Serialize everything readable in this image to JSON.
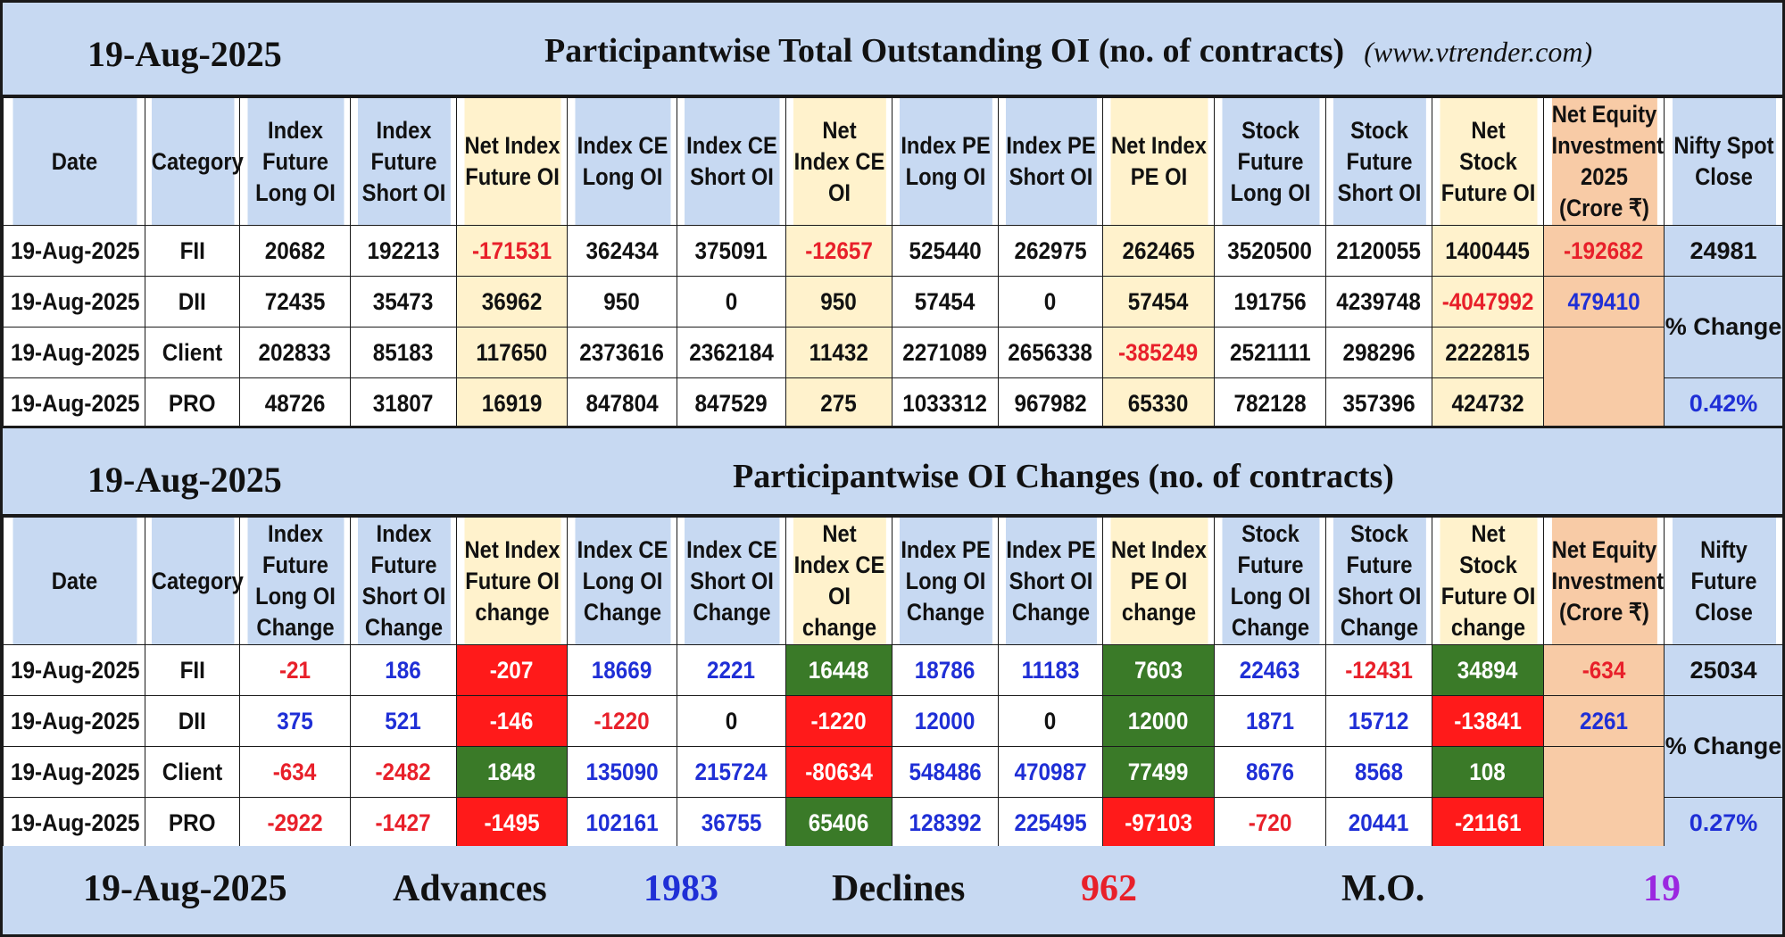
{
  "header1": {
    "date": "19-Aug-2025",
    "title": "Participantwise Total Outstanding OI (no. of contracts)",
    "site": "(www.vtrender.com)"
  },
  "table1": {
    "headers": [
      "Date",
      "Category",
      "Index Future Long OI",
      "Index Future Short OI",
      "Net Index Future OI",
      "Index CE Long OI",
      "Index CE Short OI",
      "Net Index CE OI",
      "Index PE Long OI",
      "Index PE Short OI",
      "Net Index PE OI",
      "Stock Future Long OI",
      "Stock Future Short OI",
      "Net Stock Future OI",
      "Net Equity Investment 2025 (Crore ₹)",
      "Nifty Spot Close"
    ],
    "rows": [
      [
        "19-Aug-2025",
        "FII",
        "20682",
        "192213",
        "-171531",
        "362434",
        "375091",
        "-12657",
        "525440",
        "262975",
        "262465",
        "3520500",
        "2120055",
        "1400445",
        "-192682"
      ],
      [
        "19-Aug-2025",
        "DII",
        "72435",
        "35473",
        "36962",
        "950",
        "0",
        "950",
        "57454",
        "0",
        "57454",
        "191756",
        "4239748",
        "-4047992",
        "479410"
      ],
      [
        "19-Aug-2025",
        "Client",
        "202833",
        "85183",
        "117650",
        "2373616",
        "2362184",
        "11432",
        "2271089",
        "2656338",
        "-385249",
        "2521111",
        "298296",
        "2222815",
        ""
      ],
      [
        "19-Aug-2025",
        "PRO",
        "48726",
        "31807",
        "16919",
        "847804",
        "847529",
        "275",
        "1033312",
        "967982",
        "65330",
        "782128",
        "357396",
        "424732",
        ""
      ]
    ],
    "nifty_value": "24981",
    "pct_label": "% Change",
    "pct_value": "0.42%"
  },
  "header2": {
    "date": "19-Aug-2025",
    "title": "Participantwise OI Changes (no. of contracts)"
  },
  "table2": {
    "headers": [
      "Date",
      "Category",
      "Index Future Long OI Change",
      "Index Future Short OI Change",
      "Net Index Future OI change",
      "Index CE Long OI Change",
      "Index CE Short OI Change",
      "Net Index CE OI change",
      "Index PE Long OI Change",
      "Index PE Short OI Change",
      "Net Index PE OI change",
      "Stock Future Long OI Change",
      "Stock Future Short OI Change",
      "Net Stock Future OI change",
      "Net Equity Investment (Crore ₹)",
      "Nifty Future Close"
    ],
    "rows": [
      [
        "19-Aug-2025",
        "FII",
        "-21",
        "186",
        "-207",
        "18669",
        "2221",
        "16448",
        "18786",
        "11183",
        "7603",
        "22463",
        "-12431",
        "34894",
        "-634"
      ],
      [
        "19-Aug-2025",
        "DII",
        "375",
        "521",
        "-146",
        "-1220",
        "0",
        "-1220",
        "12000",
        "0",
        "12000",
        "1871",
        "15712",
        "-13841",
        "2261"
      ],
      [
        "19-Aug-2025",
        "Client",
        "-634",
        "-2482",
        "1848",
        "135090",
        "215724",
        "-80634",
        "548486",
        "470987",
        "77499",
        "8676",
        "8568",
        "108",
        ""
      ],
      [
        "19-Aug-2025",
        "PRO",
        "-2922",
        "-1427",
        "-1495",
        "102161",
        "36755",
        "65406",
        "128392",
        "225495",
        "-97103",
        "-720",
        "20441",
        "-21161",
        ""
      ]
    ],
    "nifty_value": "25034",
    "pct_label": "% Change",
    "pct_value": "0.27%"
  },
  "footer": {
    "date": "19-Aug-2025",
    "advances_label": "Advances",
    "advances": "1983",
    "declines_label": "Declines",
    "declines": "962",
    "mo_label": "M.O.",
    "mo": "19"
  },
  "colors": {
    "header_blue": "#c7d9f2",
    "cream": "#fff2cc",
    "salmon": "#f8cba6",
    "positive_blue": "#1f2fd6",
    "negative_red": "#e8202a",
    "cell_red": "#ff1a1a",
    "cell_green": "#3a7a28",
    "mo_purple": "#9b27e0"
  }
}
